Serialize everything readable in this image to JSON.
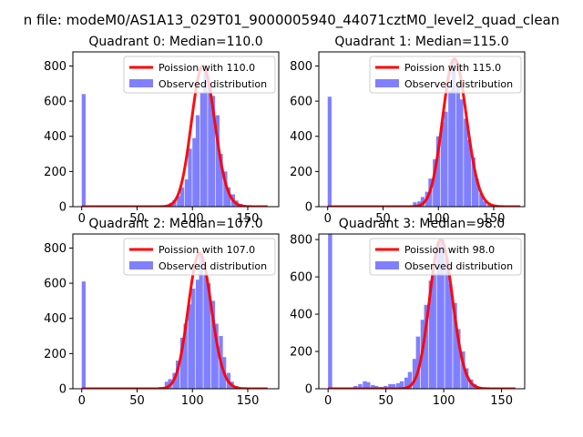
{
  "figure": {
    "suptitle": "n file: modeM0/AS1A13_029T01_9000005940_44071cztM0_level2_quad_clean"
  },
  "colors": {
    "histogram": "#8080ff",
    "poisson": "#ff0000"
  },
  "chart_data": [
    {
      "type": "bar",
      "title": "Quadrant 0: Median=110.0",
      "xlim": [
        -8,
        178
      ],
      "ylim": [
        0,
        880
      ],
      "xticks": [
        "0",
        "50",
        "100",
        "150"
      ],
      "yticks": [
        "0",
        "200",
        "400",
        "600",
        "800"
      ],
      "legend": [
        "Poission with 110.0",
        "Observed distribution"
      ],
      "legend_loc": "upper right",
      "hist": {
        "bin_width": 3.5,
        "bins": [
          [
            0,
            640
          ],
          [
            75,
            8
          ],
          [
            79,
            22
          ],
          [
            82,
            38
          ],
          [
            86,
            60
          ],
          [
            89,
            110
          ],
          [
            93,
            155
          ],
          [
            96,
            330
          ],
          [
            100,
            390
          ],
          [
            103,
            520
          ],
          [
            107,
            650
          ],
          [
            110,
            800
          ],
          [
            114,
            700
          ],
          [
            117,
            630
          ],
          [
            121,
            520
          ],
          [
            124,
            300
          ],
          [
            128,
            200
          ],
          [
            131,
            110
          ],
          [
            135,
            70
          ],
          [
            138,
            35
          ],
          [
            142,
            15
          ],
          [
            145,
            8
          ]
        ]
      },
      "poisson": {
        "mean": 110.0,
        "x_range": [
          0,
          168
        ]
      }
    },
    {
      "type": "bar",
      "title": "Quadrant 1: Median=115.0",
      "xlim": [
        -8,
        178
      ],
      "ylim": [
        0,
        880
      ],
      "xticks": [
        "0",
        "50",
        "100",
        "150"
      ],
      "yticks": [
        "0",
        "200",
        "400",
        "600",
        "800"
      ],
      "legend": [
        "Poission with 115.0",
        "Observed distribution"
      ],
      "legend_loc": "upper right",
      "hist": {
        "bin_width": 3.5,
        "bins": [
          [
            0,
            625
          ],
          [
            66,
            5
          ],
          [
            77,
            25
          ],
          [
            81,
            30
          ],
          [
            84,
            55
          ],
          [
            88,
            85
          ],
          [
            91,
            160
          ],
          [
            95,
            270
          ],
          [
            98,
            400
          ],
          [
            102,
            480
          ],
          [
            105,
            540
          ],
          [
            109,
            660
          ],
          [
            112,
            840
          ],
          [
            116,
            710
          ],
          [
            119,
            610
          ],
          [
            123,
            500
          ],
          [
            126,
            380
          ],
          [
            130,
            280
          ],
          [
            133,
            160
          ],
          [
            137,
            75
          ],
          [
            140,
            30
          ],
          [
            144,
            12
          ]
        ]
      },
      "poisson": {
        "mean": 115.0,
        "x_range": [
          0,
          174
        ]
      }
    },
    {
      "type": "bar",
      "title": "Quadrant 2: Median=107.0",
      "xlim": [
        -8,
        178
      ],
      "ylim": [
        0,
        880
      ],
      "xticks": [
        "0",
        "50",
        "100",
        "150"
      ],
      "yticks": [
        "0",
        "200",
        "400",
        "600",
        "800"
      ],
      "legend": [
        "Poission with 107.0",
        "Observed distribution"
      ],
      "legend_loc": "upper right",
      "hist": {
        "bin_width": 3.5,
        "bins": [
          [
            0,
            610
          ],
          [
            65,
            5
          ],
          [
            70,
            10
          ],
          [
            75,
            40
          ],
          [
            78,
            55
          ],
          [
            82,
            90
          ],
          [
            85,
            160
          ],
          [
            89,
            290
          ],
          [
            92,
            370
          ],
          [
            96,
            480
          ],
          [
            99,
            570
          ],
          [
            103,
            620
          ],
          [
            106,
            770
          ],
          [
            110,
            650
          ],
          [
            113,
            600
          ],
          [
            117,
            500
          ],
          [
            120,
            370
          ],
          [
            124,
            300
          ],
          [
            127,
            180
          ],
          [
            131,
            90
          ],
          [
            134,
            40
          ],
          [
            138,
            15
          ]
        ]
      },
      "poisson": {
        "mean": 107.0,
        "x_range": [
          0,
          168
        ]
      }
    },
    {
      "type": "bar",
      "title": "Quadrant 3: Median=98.0",
      "xlim": [
        -8,
        170
      ],
      "ylim": [
        0,
        830
      ],
      "xticks": [
        "0",
        "50",
        "100",
        "150"
      ],
      "yticks": [
        "0",
        "200",
        "400",
        "600",
        "800"
      ],
      "legend": [
        "Poission with 98.0",
        "Observed distribution"
      ],
      "legend_loc": "upper right",
      "hist": {
        "bin_width": 3.5,
        "bins": [
          [
            0,
            830
          ],
          [
            22,
            15
          ],
          [
            26,
            25
          ],
          [
            30,
            40
          ],
          [
            33,
            35
          ],
          [
            37,
            20
          ],
          [
            40,
            15
          ],
          [
            44,
            10
          ],
          [
            48,
            15
          ],
          [
            52,
            25
          ],
          [
            55,
            25
          ],
          [
            59,
            30
          ],
          [
            62,
            40
          ],
          [
            66,
            60
          ],
          [
            69,
            90
          ],
          [
            73,
            160
          ],
          [
            76,
            280
          ],
          [
            80,
            370
          ],
          [
            83,
            450
          ],
          [
            87,
            580
          ],
          [
            90,
            620
          ],
          [
            94,
            790
          ],
          [
            97,
            800
          ],
          [
            101,
            700
          ],
          [
            104,
            560
          ],
          [
            108,
            460
          ],
          [
            111,
            320
          ],
          [
            115,
            200
          ],
          [
            118,
            110
          ],
          [
            122,
            50
          ],
          [
            125,
            25
          ]
        ]
      },
      "poisson": {
        "mean": 98.0,
        "x_range": [
          0,
          162
        ]
      }
    }
  ]
}
